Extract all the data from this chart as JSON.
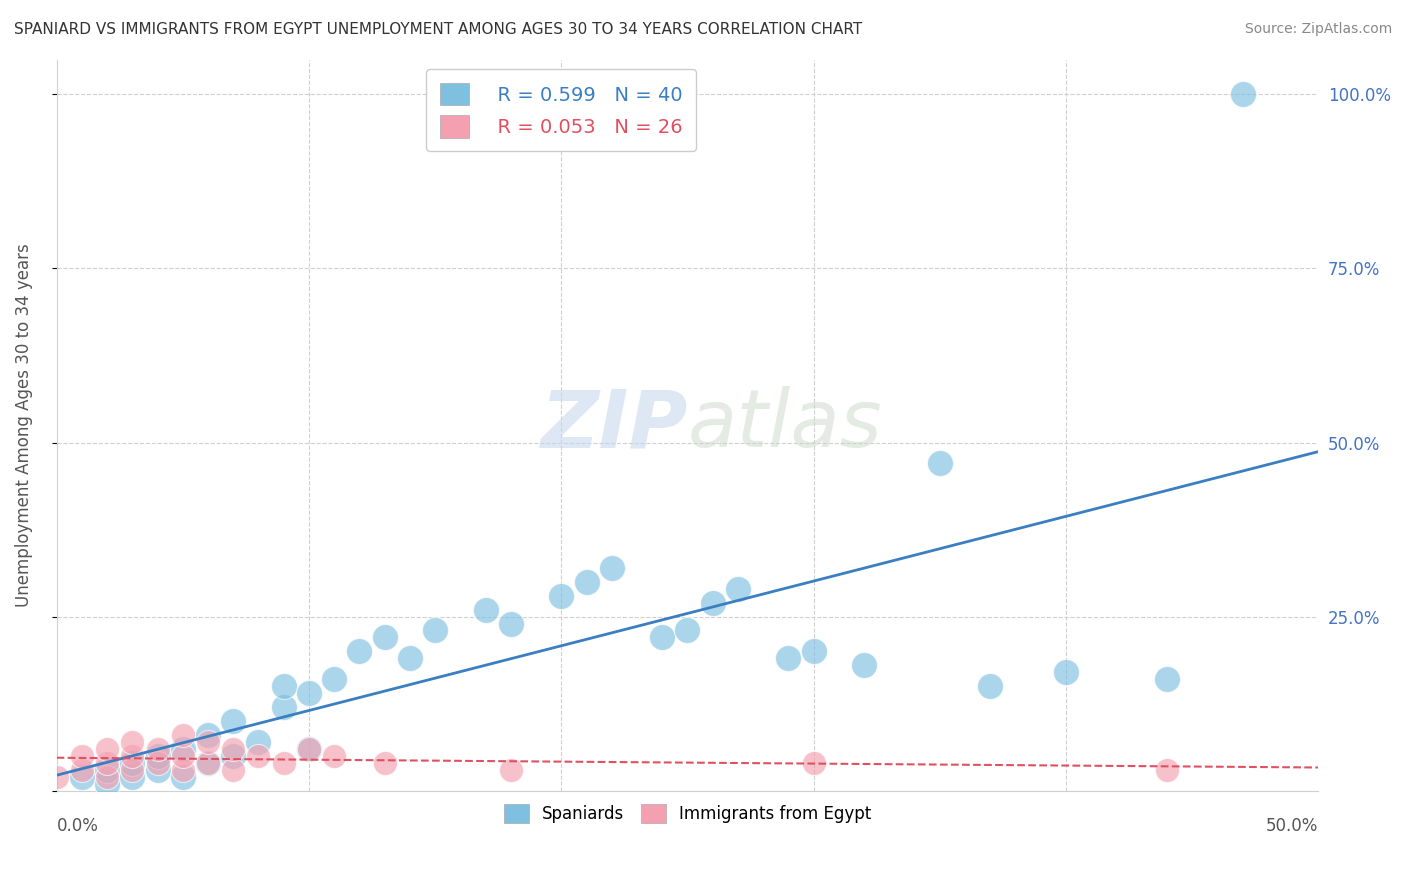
{
  "title": "SPANIARD VS IMMIGRANTS FROM EGYPT UNEMPLOYMENT AMONG AGES 30 TO 34 YEARS CORRELATION CHART",
  "source": "Source: ZipAtlas.com",
  "ylabel": "Unemployment Among Ages 30 to 34 years",
  "series1_label": "Spaniards",
  "series1_R": "R = 0.599",
  "series1_N": "N = 40",
  "series2_label": "Immigrants from Egypt",
  "series2_R": "R = 0.053",
  "series2_N": "N = 26",
  "series1_color": "#7fbfdf",
  "series2_color": "#f4a0b0",
  "line1_color": "#3a7fc1",
  "line2_color": "#e05060",
  "xlim": [
    0.0,
    0.5
  ],
  "ylim": [
    0.0,
    1.05
  ],
  "yticks": [
    0.0,
    0.25,
    0.5,
    0.75,
    1.0
  ],
  "ytick_labels": [
    "",
    "25.0%",
    "50.0%",
    "75.0%",
    "100.0%"
  ],
  "spaniards_x": [
    0.01,
    0.02,
    0.02,
    0.03,
    0.03,
    0.04,
    0.04,
    0.05,
    0.05,
    0.06,
    0.06,
    0.07,
    0.07,
    0.08,
    0.09,
    0.09,
    0.1,
    0.1,
    0.11,
    0.12,
    0.13,
    0.14,
    0.15,
    0.17,
    0.18,
    0.2,
    0.21,
    0.22,
    0.24,
    0.25,
    0.26,
    0.27,
    0.29,
    0.3,
    0.32,
    0.35,
    0.37,
    0.4,
    0.44,
    0.47
  ],
  "spaniards_y": [
    0.02,
    0.01,
    0.03,
    0.02,
    0.04,
    0.03,
    0.05,
    0.02,
    0.06,
    0.04,
    0.08,
    0.05,
    0.1,
    0.07,
    0.12,
    0.15,
    0.06,
    0.14,
    0.16,
    0.2,
    0.22,
    0.19,
    0.23,
    0.26,
    0.24,
    0.28,
    0.3,
    0.32,
    0.22,
    0.23,
    0.27,
    0.29,
    0.19,
    0.2,
    0.18,
    0.47,
    0.15,
    0.17,
    0.16,
    1.0
  ],
  "egypt_x": [
    0.0,
    0.01,
    0.01,
    0.02,
    0.02,
    0.02,
    0.03,
    0.03,
    0.03,
    0.04,
    0.04,
    0.05,
    0.05,
    0.05,
    0.06,
    0.06,
    0.07,
    0.07,
    0.08,
    0.09,
    0.1,
    0.11,
    0.13,
    0.18,
    0.3,
    0.44
  ],
  "egypt_y": [
    0.02,
    0.03,
    0.05,
    0.02,
    0.04,
    0.06,
    0.03,
    0.05,
    0.07,
    0.04,
    0.06,
    0.03,
    0.05,
    0.08,
    0.04,
    0.07,
    0.03,
    0.06,
    0.05,
    0.04,
    0.06,
    0.05,
    0.04,
    0.03,
    0.04,
    0.03
  ]
}
